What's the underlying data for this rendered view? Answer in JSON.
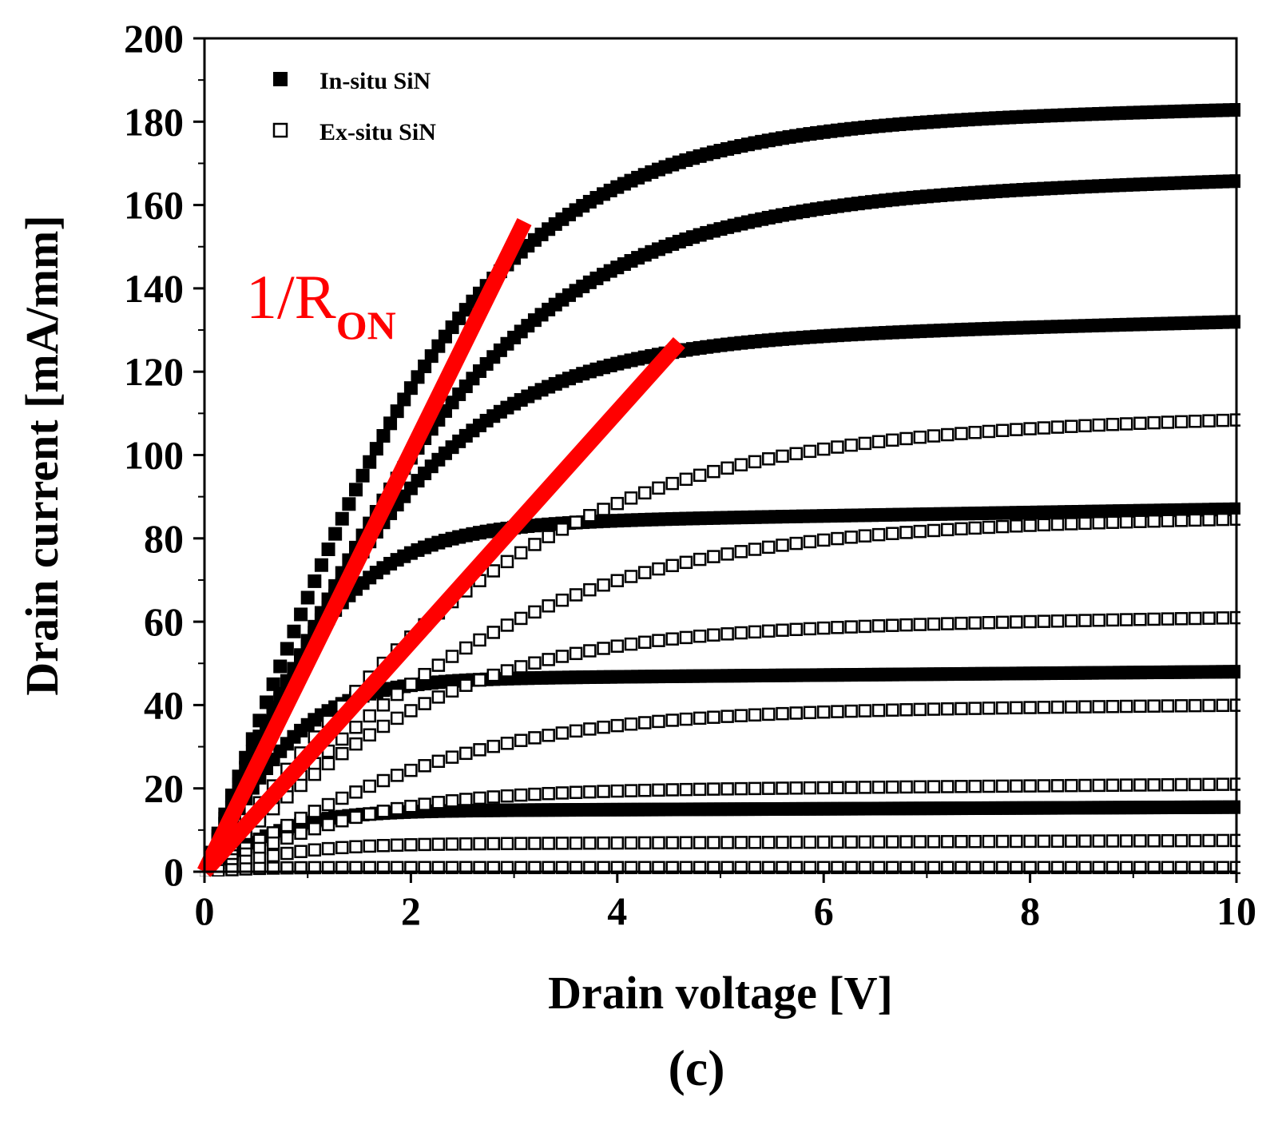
{
  "chart_data": {
    "type": "scatter",
    "panel_label": "(c)",
    "xlabel": "Drain voltage [V]",
    "ylabel": "Drain current [mA/mm]",
    "xlim": [
      0,
      10
    ],
    "ylim": [
      0,
      200
    ],
    "xticks": [
      "0",
      "2",
      "4",
      "6",
      "8",
      "10"
    ],
    "yticks": [
      "0",
      "20",
      "40",
      "60",
      "80",
      "100",
      "120",
      "140",
      "160",
      "180",
      "200"
    ],
    "legend": {
      "position": "top-left",
      "entries": [
        {
          "label": "In-situ SiN",
          "marker": "filled-square"
        },
        {
          "label": "Ex-situ SiN",
          "marker": "open-square"
        }
      ]
    },
    "series": [
      {
        "name": "In-situ SiN",
        "marker": "filled-square",
        "curves": [
          {
            "isat": 178,
            "vk": 2.6,
            "slope": 0.5
          },
          {
            "isat": 160,
            "vk": 2.8,
            "slope": 0.6
          },
          {
            "isat": 126,
            "vk": 2.2,
            "slope": 0.6
          },
          {
            "isat": 83,
            "vk": 1.3,
            "slope": 0.4
          },
          {
            "isat": 46,
            "vk": 1.0,
            "slope": 0.2
          },
          {
            "isat": 14.5,
            "vk": 0.9,
            "slope": 0.1
          }
        ]
      },
      {
        "name": "Ex-situ SiN",
        "marker": "open-square",
        "curves": [
          {
            "isat": 105,
            "vk": 3.4,
            "slope": 0.4
          },
          {
            "isat": 82,
            "vk": 3.3,
            "slope": 0.3
          },
          {
            "isat": 57,
            "vk": 2.5,
            "slope": 0.4
          },
          {
            "isat": 38,
            "vk": 2.7,
            "slope": 0.2
          },
          {
            "isat": 19,
            "vk": 1.8,
            "slope": 0.2
          },
          {
            "isat": 6.5,
            "vk": 1.0,
            "slope": 0.1
          },
          {
            "isat": 1,
            "vk": 0.5,
            "slope": 0.0
          }
        ]
      }
    ],
    "annotation": {
      "text": "1/R",
      "subscript": "ON",
      "color": "#ff0000",
      "lines": [
        {
          "from": [
            0,
            0
          ],
          "to": [
            3.1,
            156
          ]
        },
        {
          "from": [
            0,
            0
          ],
          "to": [
            4.6,
            127
          ]
        }
      ]
    }
  }
}
